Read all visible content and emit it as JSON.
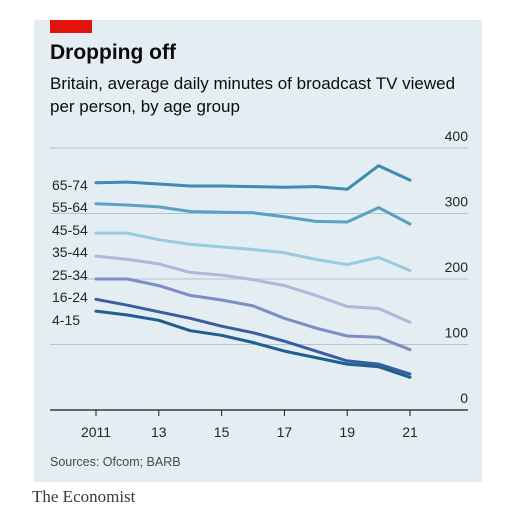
{
  "header": {
    "title": "Dropping off",
    "subtitle": "Britain, average daily minutes of broadcast TV viewed per person, by age group"
  },
  "footer": {
    "source": "Sources: Ofcom; BARB",
    "brand": "The Economist"
  },
  "colors": {
    "accent": "#e3120b",
    "panel": "#e3edf2"
  },
  "chart_data": {
    "type": "line",
    "x": [
      2011,
      2012,
      2013,
      2014,
      2015,
      2016,
      2017,
      2018,
      2019,
      2020,
      2021
    ],
    "x_tick_labels": [
      "2011",
      "13",
      "15",
      "17",
      "19",
      "21"
    ],
    "x_tick_values": [
      2011,
      2013,
      2015,
      2017,
      2019,
      2021
    ],
    "y_ticks": [
      0,
      100,
      200,
      300,
      400
    ],
    "ylim": [
      0,
      400
    ],
    "grid": "horizontal",
    "series": [
      {
        "name": "65-74",
        "color": "#3d8bb3",
        "values": [
          347,
          348,
          345,
          342,
          342,
          341,
          340,
          341,
          337,
          373,
          351
        ]
      },
      {
        "name": "55-64",
        "color": "#5aa0c4",
        "values": [
          315,
          313,
          310,
          303,
          302,
          301,
          295,
          288,
          287,
          309,
          284
        ]
      },
      {
        "name": "45-54",
        "color": "#9bc9e0",
        "values": [
          270,
          270,
          260,
          253,
          249,
          245,
          240,
          230,
          222,
          233,
          213
        ]
      },
      {
        "name": "35-44",
        "color": "#aeb8db",
        "values": [
          235,
          230,
          223,
          210,
          206,
          199,
          190,
          175,
          158,
          155,
          134
        ]
      },
      {
        "name": "25-34",
        "color": "#7e8dc4",
        "values": [
          200,
          200,
          190,
          175,
          168,
          159,
          140,
          125,
          113,
          111,
          92
        ]
      },
      {
        "name": "16-24",
        "color": "#3b5f9e",
        "values": [
          169,
          160,
          150,
          140,
          128,
          118,
          105,
          90,
          75,
          70,
          55
        ]
      },
      {
        "name": "4-15",
        "color": "#1f5f8f",
        "values": [
          151,
          145,
          137,
          121,
          114,
          103,
          90,
          80,
          70,
          66,
          50
        ]
      }
    ]
  }
}
